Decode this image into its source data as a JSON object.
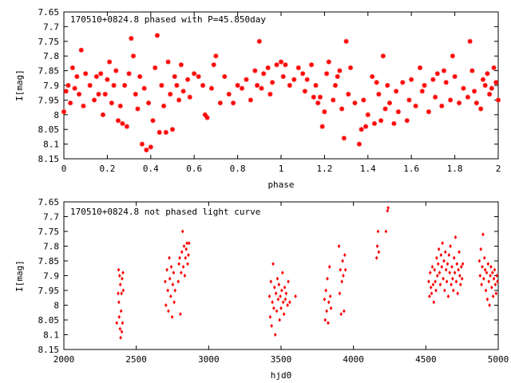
{
  "chart_data": [
    {
      "type": "scatter",
      "title": "170510+0824.8 phased with P=45.850day",
      "xlabel": "phase",
      "ylabel": "I[mag]",
      "xlim": [
        0,
        2
      ],
      "ylim": [
        7.65,
        8.15
      ],
      "y_inverted": true,
      "x_ticks": [
        "0",
        "0.2",
        "0.4",
        "0.6",
        "0.8",
        "1",
        "1.2",
        "1.4",
        "1.6",
        "1.8",
        "2"
      ],
      "y_ticks": [
        "7.65",
        "7.7",
        "7.75",
        "7.8",
        "7.85",
        "7.9",
        "7.95",
        "8",
        "8.05",
        "8.1",
        "8.15"
      ],
      "grid": false,
      "marker_color": "#ff0000",
      "points": [
        [
          0.0,
          7.99
        ],
        [
          0.01,
          7.92
        ],
        [
          0.02,
          7.9
        ],
        [
          0.03,
          7.96
        ],
        [
          0.04,
          7.84
        ],
        [
          0.05,
          7.91
        ],
        [
          0.06,
          7.87
        ],
        [
          0.07,
          7.93
        ],
        [
          0.08,
          7.78
        ],
        [
          0.09,
          7.97
        ],
        [
          0.1,
          7.86
        ],
        [
          0.12,
          7.9
        ],
        [
          0.14,
          7.95
        ],
        [
          0.15,
          7.87
        ],
        [
          0.16,
          7.93
        ],
        [
          0.17,
          7.86
        ],
        [
          0.18,
          8.0
        ],
        [
          0.19,
          7.93
        ],
        [
          0.2,
          7.88
        ],
        [
          0.21,
          7.82
        ],
        [
          0.22,
          7.96
        ],
        [
          0.23,
          7.9
        ],
        [
          0.24,
          7.85
        ],
        [
          0.25,
          8.02
        ],
        [
          0.26,
          7.97
        ],
        [
          0.27,
          8.03
        ],
        [
          0.28,
          7.9
        ],
        [
          0.29,
          8.04
        ],
        [
          0.3,
          7.86
        ],
        [
          0.31,
          7.74
        ],
        [
          0.32,
          7.8
        ],
        [
          0.33,
          7.93
        ],
        [
          0.34,
          7.98
        ],
        [
          0.35,
          7.87
        ],
        [
          0.36,
          8.1
        ],
        [
          0.37,
          7.91
        ],
        [
          0.38,
          8.12
        ],
        [
          0.39,
          7.96
        ],
        [
          0.4,
          8.11
        ],
        [
          0.41,
          8.02
        ],
        [
          0.42,
          7.84
        ],
        [
          0.43,
          7.73
        ],
        [
          0.44,
          8.06
        ],
        [
          0.45,
          7.9
        ],
        [
          0.46,
          7.97
        ],
        [
          0.47,
          8.06
        ],
        [
          0.48,
          7.82
        ],
        [
          0.49,
          7.93
        ],
        [
          0.5,
          8.05
        ],
        [
          0.51,
          7.87
        ],
        [
          0.52,
          7.9
        ],
        [
          0.53,
          7.95
        ],
        [
          0.54,
          7.83
        ],
        [
          0.55,
          7.92
        ],
        [
          0.57,
          7.88
        ],
        [
          0.58,
          7.94
        ],
        [
          0.6,
          7.86
        ],
        [
          0.62,
          7.87
        ],
        [
          0.64,
          7.9
        ],
        [
          0.65,
          8.0
        ],
        [
          0.66,
          8.01
        ],
        [
          0.68,
          7.91
        ],
        [
          0.69,
          7.83
        ],
        [
          0.7,
          7.8
        ],
        [
          0.72,
          7.96
        ],
        [
          0.74,
          7.87
        ],
        [
          0.76,
          7.93
        ],
        [
          0.78,
          7.96
        ],
        [
          0.8,
          7.9
        ],
        [
          0.82,
          7.91
        ],
        [
          0.84,
          7.88
        ],
        [
          0.86,
          7.95
        ],
        [
          0.88,
          7.85
        ],
        [
          0.89,
          7.9
        ],
        [
          0.9,
          7.75
        ],
        [
          0.91,
          7.91
        ],
        [
          0.92,
          7.86
        ],
        [
          0.94,
          7.84
        ],
        [
          0.95,
          7.93
        ],
        [
          0.96,
          7.89
        ],
        [
          0.98,
          7.83
        ],
        [
          1.0,
          7.82
        ],
        [
          1.01,
          7.87
        ],
        [
          1.02,
          7.83
        ],
        [
          1.04,
          7.9
        ],
        [
          1.06,
          7.88
        ],
        [
          1.08,
          7.84
        ],
        [
          1.1,
          7.86
        ],
        [
          1.11,
          7.92
        ],
        [
          1.12,
          7.88
        ],
        [
          1.14,
          7.83
        ],
        [
          1.15,
          7.94
        ],
        [
          1.16,
          7.9
        ],
        [
          1.17,
          7.96
        ],
        [
          1.18,
          7.94
        ],
        [
          1.19,
          8.04
        ],
        [
          1.2,
          7.99
        ],
        [
          1.21,
          7.86
        ],
        [
          1.22,
          7.82
        ],
        [
          1.24,
          7.95
        ],
        [
          1.25,
          7.9
        ],
        [
          1.26,
          7.87
        ],
        [
          1.27,
          7.85
        ],
        [
          1.28,
          7.98
        ],
        [
          1.29,
          8.08
        ],
        [
          1.3,
          7.75
        ],
        [
          1.31,
          7.93
        ],
        [
          1.32,
          7.84
        ],
        [
          1.34,
          7.96
        ],
        [
          1.36,
          8.1
        ],
        [
          1.37,
          8.05
        ],
        [
          1.38,
          7.95
        ],
        [
          1.39,
          8.04
        ],
        [
          1.4,
          8.0
        ],
        [
          1.42,
          7.87
        ],
        [
          1.43,
          8.03
        ],
        [
          1.44,
          7.89
        ],
        [
          1.45,
          7.93
        ],
        [
          1.46,
          8.02
        ],
        [
          1.47,
          7.8
        ],
        [
          1.48,
          7.98
        ],
        [
          1.49,
          7.9
        ],
        [
          1.5,
          7.96
        ],
        [
          1.52,
          8.03
        ],
        [
          1.53,
          7.92
        ],
        [
          1.54,
          7.99
        ],
        [
          1.56,
          7.89
        ],
        [
          1.58,
          8.02
        ],
        [
          1.59,
          7.95
        ],
        [
          1.6,
          7.88
        ],
        [
          1.62,
          7.97
        ],
        [
          1.64,
          7.84
        ],
        [
          1.65,
          7.92
        ],
        [
          1.66,
          7.9
        ],
        [
          1.68,
          7.99
        ],
        [
          1.7,
          7.88
        ],
        [
          1.71,
          7.94
        ],
        [
          1.72,
          7.86
        ],
        [
          1.74,
          7.97
        ],
        [
          1.75,
          7.85
        ],
        [
          1.76,
          7.89
        ],
        [
          1.78,
          7.95
        ],
        [
          1.79,
          7.8
        ],
        [
          1.8,
          7.87
        ],
        [
          1.82,
          7.96
        ],
        [
          1.84,
          7.91
        ],
        [
          1.86,
          7.94
        ],
        [
          1.87,
          7.75
        ],
        [
          1.88,
          7.85
        ],
        [
          1.89,
          7.92
        ],
        [
          1.9,
          7.96
        ],
        [
          1.92,
          7.98
        ],
        [
          1.93,
          7.88
        ],
        [
          1.94,
          7.9
        ],
        [
          1.95,
          7.86
        ],
        [
          1.96,
          7.93
        ],
        [
          1.97,
          7.91
        ],
        [
          1.98,
          7.84
        ],
        [
          1.99,
          7.89
        ],
        [
          2.0,
          7.95
        ]
      ]
    },
    {
      "type": "scatter",
      "title": "170510+0824.8 not phased light curve",
      "xlabel": "hjd0",
      "ylabel": "I[mag]",
      "xlim": [
        2000,
        5000
      ],
      "ylim": [
        7.65,
        8.15
      ],
      "y_inverted": true,
      "x_ticks": [
        "2000",
        "2500",
        "3000",
        "3500",
        "4000",
        "4500",
        "5000"
      ],
      "y_ticks": [
        "7.65",
        "7.7",
        "7.75",
        "7.8",
        "7.85",
        "7.9",
        "7.95",
        "8",
        "8.05",
        "8.1",
        "8.15"
      ],
      "grid": false,
      "marker_color": "#ff0000",
      "points": [
        [
          2365,
          8.06
        ],
        [
          2375,
          7.96
        ],
        [
          2378,
          7.88
        ],
        [
          2380,
          7.99
        ],
        [
          2382,
          8.04
        ],
        [
          2385,
          7.9
        ],
        [
          2388,
          8.08
        ],
        [
          2390,
          7.93
        ],
        [
          2392,
          8.11
        ],
        [
          2395,
          8.02
        ],
        [
          2398,
          7.96
        ],
        [
          2400,
          8.09
        ],
        [
          2402,
          7.91
        ],
        [
          2405,
          8.06
        ],
        [
          2408,
          7.89
        ],
        [
          2410,
          7.95
        ],
        [
          2700,
          7.92
        ],
        [
          2705,
          8.0
        ],
        [
          2712,
          7.88
        ],
        [
          2718,
          7.95
        ],
        [
          2722,
          8.02
        ],
        [
          2728,
          7.84
        ],
        [
          2732,
          7.91
        ],
        [
          2738,
          7.97
        ],
        [
          2742,
          7.87
        ],
        [
          2748,
          8.04
        ],
        [
          2752,
          7.93
        ],
        [
          2758,
          7.89
        ],
        [
          2762,
          7.99
        ],
        [
          2768,
          7.95
        ],
        [
          2790,
          7.92
        ],
        [
          2795,
          7.86
        ],
        [
          2800,
          7.84
        ],
        [
          2805,
          8.03
        ],
        [
          2810,
          7.89
        ],
        [
          2815,
          7.82
        ],
        [
          2820,
          7.75
        ],
        [
          2825,
          7.87
        ],
        [
          2830,
          7.8
        ],
        [
          2835,
          7.9
        ],
        [
          2840,
          7.84
        ],
        [
          2845,
          7.81
        ],
        [
          2850,
          7.79
        ],
        [
          2855,
          7.86
        ],
        [
          2860,
          7.83
        ],
        [
          2865,
          7.79
        ],
        [
          3420,
          7.97
        ],
        [
          3425,
          8.04
        ],
        [
          3430,
          7.92
        ],
        [
          3435,
          8.07
        ],
        [
          3440,
          7.99
        ],
        [
          3445,
          7.86
        ],
        [
          3450,
          8.01
        ],
        [
          3455,
          7.94
        ],
        [
          3460,
          8.1
        ],
        [
          3465,
          7.96
        ],
        [
          3470,
          8.02
        ],
        [
          3475,
          7.91
        ],
        [
          3480,
          7.98
        ],
        [
          3485,
          7.93
        ],
        [
          3490,
          8.05
        ],
        [
          3495,
          7.97
        ],
        [
          3500,
          8.01
        ],
        [
          3505,
          7.95
        ],
        [
          3510,
          7.89
        ],
        [
          3515,
          7.99
        ],
        [
          3520,
          8.03
        ],
        [
          3525,
          7.94
        ],
        [
          3530,
          7.98
        ],
        [
          3535,
          7.96
        ],
        [
          3545,
          8.0
        ],
        [
          3550,
          7.92
        ],
        [
          3560,
          7.99
        ],
        [
          3600,
          7.97
        ],
        [
          3800,
          7.98
        ],
        [
          3805,
          8.05
        ],
        [
          3810,
          7.95
        ],
        [
          3815,
          8.02
        ],
        [
          3820,
          7.91
        ],
        [
          3825,
          8.06
        ],
        [
          3830,
          7.99
        ],
        [
          3835,
          7.87
        ],
        [
          3840,
          7.97
        ],
        [
          3845,
          8.01
        ],
        [
          3900,
          7.8
        ],
        [
          3905,
          7.96
        ],
        [
          3910,
          7.88
        ],
        [
          3915,
          8.03
        ],
        [
          3920,
          7.92
        ],
        [
          3925,
          7.85
        ],
        [
          3930,
          7.9
        ],
        [
          3935,
          8.02
        ],
        [
          3940,
          7.83
        ],
        [
          3945,
          7.88
        ],
        [
          4160,
          7.84
        ],
        [
          4165,
          7.8
        ],
        [
          4170,
          7.75
        ],
        [
          4175,
          7.82
        ],
        [
          4225,
          7.75
        ],
        [
          4235,
          7.68
        ],
        [
          4240,
          7.67
        ],
        [
          4520,
          7.92
        ],
        [
          4525,
          7.97
        ],
        [
          4530,
          7.89
        ],
        [
          4535,
          7.94
        ],
        [
          4540,
          7.96
        ],
        [
          4545,
          7.87
        ],
        [
          4550,
          7.93
        ],
        [
          4555,
          7.99
        ],
        [
          4560,
          7.88
        ],
        [
          4565,
          7.92
        ],
        [
          4570,
          7.95
        ],
        [
          4575,
          7.84
        ],
        [
          4580,
          7.9
        ],
        [
          4585,
          7.86
        ],
        [
          4590,
          7.81
        ],
        [
          4595,
          7.89
        ],
        [
          4600,
          7.93
        ],
        [
          4605,
          7.83
        ],
        [
          4610,
          7.87
        ],
        [
          4615,
          7.79
        ],
        [
          4620,
          7.91
        ],
        [
          4625,
          7.85
        ],
        [
          4630,
          7.95
        ],
        [
          4635,
          7.82
        ],
        [
          4640,
          7.88
        ],
        [
          4645,
          7.92
        ],
        [
          4650,
          7.86
        ],
        [
          4655,
          7.97
        ],
        [
          4660,
          7.83
        ],
        [
          4665,
          7.89
        ],
        [
          4670,
          7.8
        ],
        [
          4675,
          7.93
        ],
        [
          4680,
          7.87
        ],
        [
          4685,
          7.91
        ],
        [
          4690,
          7.95
        ],
        [
          4695,
          7.84
        ],
        [
          4700,
          7.89
        ],
        [
          4705,
          7.77
        ],
        [
          4710,
          7.92
        ],
        [
          4715,
          7.86
        ],
        [
          4720,
          7.96
        ],
        [
          4725,
          7.88
        ],
        [
          4730,
          7.82
        ],
        [
          4735,
          7.9
        ],
        [
          4740,
          7.93
        ],
        [
          4745,
          7.87
        ],
        [
          4750,
          7.91
        ],
        [
          4755,
          7.86
        ],
        [
          4870,
          7.85
        ],
        [
          4875,
          7.9
        ],
        [
          4880,
          7.81
        ],
        [
          4885,
          7.93
        ],
        [
          4890,
          7.87
        ],
        [
          4895,
          7.76
        ],
        [
          4900,
          7.91
        ],
        [
          4905,
          7.84
        ],
        [
          4910,
          7.88
        ],
        [
          4915,
          7.95
        ],
        [
          4920,
          7.89
        ],
        [
          4925,
          7.98
        ],
        [
          4930,
          7.86
        ],
        [
          4935,
          7.92
        ],
        [
          4940,
          8.0
        ],
        [
          4945,
          7.9
        ],
        [
          4950,
          7.87
        ],
        [
          4955,
          7.94
        ],
        [
          4960,
          7.89
        ],
        [
          4965,
          7.97
        ],
        [
          4970,
          7.91
        ],
        [
          4975,
          7.88
        ],
        [
          4980,
          7.93
        ],
        [
          4985,
          7.96
        ],
        [
          4990,
          7.9
        ],
        [
          4995,
          7.92
        ]
      ]
    }
  ]
}
